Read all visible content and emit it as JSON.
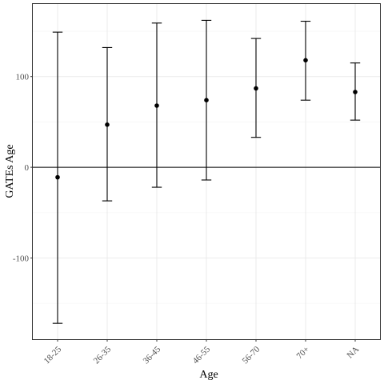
{
  "chart_data": {
    "type": "scatter",
    "xlabel": "Age",
    "ylabel": "GATEs Age",
    "categories": [
      "18-25",
      "26-35",
      "36-45",
      "46-55",
      "56-70",
      "70+",
      "NA"
    ],
    "series": [
      {
        "points": [
          {
            "x": "18-25",
            "y": -11,
            "ymin": -172,
            "ymax": 149
          },
          {
            "x": "26-35",
            "y": 47,
            "ymin": -37,
            "ymax": 132
          },
          {
            "x": "36-45",
            "y": 68,
            "ymin": -22,
            "ymax": 159
          },
          {
            "x": "46-55",
            "y": 74,
            "ymin": -14,
            "ymax": 162
          },
          {
            "x": "56-70",
            "y": 87,
            "ymin": 33,
            "ymax": 142
          },
          {
            "x": "70+",
            "y": 118,
            "ymin": 74,
            "ymax": 161
          },
          {
            "x": "NA",
            "y": 83,
            "ymin": 52,
            "ymax": 115
          }
        ]
      }
    ],
    "yticks": [
      -100,
      0,
      100
    ],
    "ylim": [
      -189.5,
      180
    ],
    "hline": 0,
    "grid": true,
    "legend": "none",
    "colors": {
      "point": "#000000",
      "grid_major": "#ebebeb",
      "grid_minor": "#f5f5f5",
      "panel_border": "#333333",
      "tick_text": "#4d4d4d"
    }
  }
}
